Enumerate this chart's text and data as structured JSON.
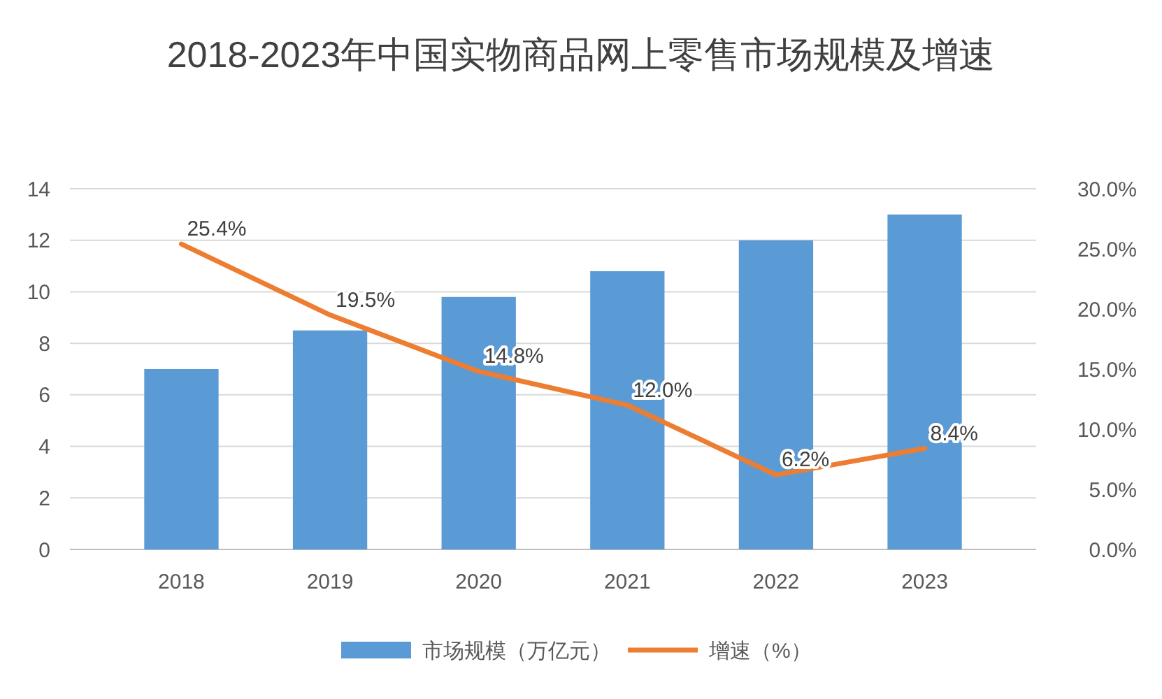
{
  "chart_data": {
    "type": "bar",
    "title": "2018-2023年中国实物商品网上零售市场规模及增速",
    "categories": [
      "2018",
      "2019",
      "2020",
      "2021",
      "2022",
      "2023"
    ],
    "series": [
      {
        "name": "市场规模（万亿元）",
        "color": "#5b9bd5",
        "values": [
          7.0,
          8.5,
          9.8,
          10.8,
          12.0,
          13.0
        ]
      },
      {
        "name": "增速（%）",
        "type": "line",
        "axis": "y2",
        "color": "#ed7d31",
        "values": [
          25.4,
          19.5,
          14.8,
          12.0,
          6.2,
          8.4
        ],
        "value_labels": [
          "25.4%",
          "19.5%",
          "14.8%",
          "12.0%",
          "6.2%",
          "8.4%"
        ]
      }
    ],
    "ylim": [
      0,
      14
    ],
    "yticks": [
      0,
      2,
      4,
      6,
      8,
      10,
      12,
      14
    ],
    "y2lim": [
      0,
      30
    ],
    "y2ticks": [
      {
        "value": 0,
        "label": "0.0%"
      },
      {
        "value": 5,
        "label": "5.0%"
      },
      {
        "value": 10,
        "label": "10.0%"
      },
      {
        "value": 15,
        "label": "15.0%"
      },
      {
        "value": 20,
        "label": "20.0%"
      },
      {
        "value": 25,
        "label": "25.0%"
      },
      {
        "value": 30,
        "label": "30.0%"
      }
    ],
    "grid": "y",
    "legend": "bottom",
    "marker": "none",
    "line_style": "solid"
  }
}
